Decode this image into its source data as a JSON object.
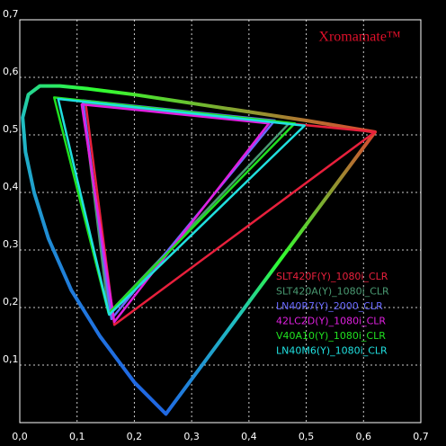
{
  "chart_data": {
    "type": "chromaticity",
    "title": "Xromamate™",
    "xlim": [
      0,
      0.7
    ],
    "ylim": [
      0,
      0.7
    ],
    "xticks": [
      {
        "value": 0,
        "label": "0,0"
      },
      {
        "value": 0.1,
        "label": "0,1"
      },
      {
        "value": 0.2,
        "label": "0,2"
      },
      {
        "value": 0.3,
        "label": "0,3"
      },
      {
        "value": 0.4,
        "label": "0,4"
      },
      {
        "value": 0.5,
        "label": "0,5"
      },
      {
        "value": 0.6,
        "label": "0,6"
      },
      {
        "value": 0.7,
        "label": "0,7"
      }
    ],
    "yticks": [
      {
        "value": 0.1,
        "label": "0,1"
      },
      {
        "value": 0.2,
        "label": "0,2"
      },
      {
        "value": 0.3,
        "label": "0,3"
      },
      {
        "value": 0.4,
        "label": "0,4"
      },
      {
        "value": 0.5,
        "label": "0,5"
      },
      {
        "value": 0.6,
        "label": "0,6"
      },
      {
        "value": 0.7,
        "label": "0,7"
      }
    ],
    "grid": true,
    "spectral_locus": {
      "x": [
        0.255,
        0.2,
        0.14,
        0.09,
        0.05,
        0.025,
        0.01,
        0.005,
        0.015,
        0.035,
        0.07,
        0.12,
        0.2,
        0.3,
        0.4,
        0.5,
        0.62
      ],
      "y": [
        0.015,
        0.07,
        0.15,
        0.23,
        0.32,
        0.4,
        0.47,
        0.53,
        0.57,
        0.585,
        0.585,
        0.58,
        0.57,
        0.555,
        0.54,
        0.525,
        0.505
      ]
    },
    "series": [
      {
        "name": "SLT420F(Y)_1080i_CLR",
        "color": "#e8203c",
        "x": [
          0.62,
          0.115,
          0.165
        ],
        "y": [
          0.505,
          0.555,
          0.17
        ]
      },
      {
        "name": "SLT420A(Y)_1080i_CLR",
        "color": "#4a9a72",
        "x": [
          0.47,
          0.11,
          0.155
        ],
        "y": [
          0.52,
          0.555,
          0.19
        ]
      },
      {
        "name": "LN40R7(Y)_2000_CLR",
        "color": "#6a6aff",
        "x": [
          0.445,
          0.11,
          0.16
        ],
        "y": [
          0.525,
          0.56,
          0.18
        ]
      },
      {
        "name": "42LC2D(Y)_1080i_CLR",
        "color": "#e020e0",
        "x": [
          0.435,
          0.108,
          0.165
        ],
        "y": [
          0.52,
          0.553,
          0.175
        ]
      },
      {
        "name": "V40A10(Y)_1080i_CLR",
        "color": "#20e020",
        "x": [
          0.48,
          0.06,
          0.155
        ],
        "y": [
          0.52,
          0.565,
          0.19
        ]
      },
      {
        "name": "LN40M6(Y)_1080i_CLR",
        "color": "#20e0e0",
        "x": [
          0.497,
          0.067,
          0.156
        ],
        "y": [
          0.516,
          0.5625,
          0.1875
        ]
      }
    ]
  }
}
